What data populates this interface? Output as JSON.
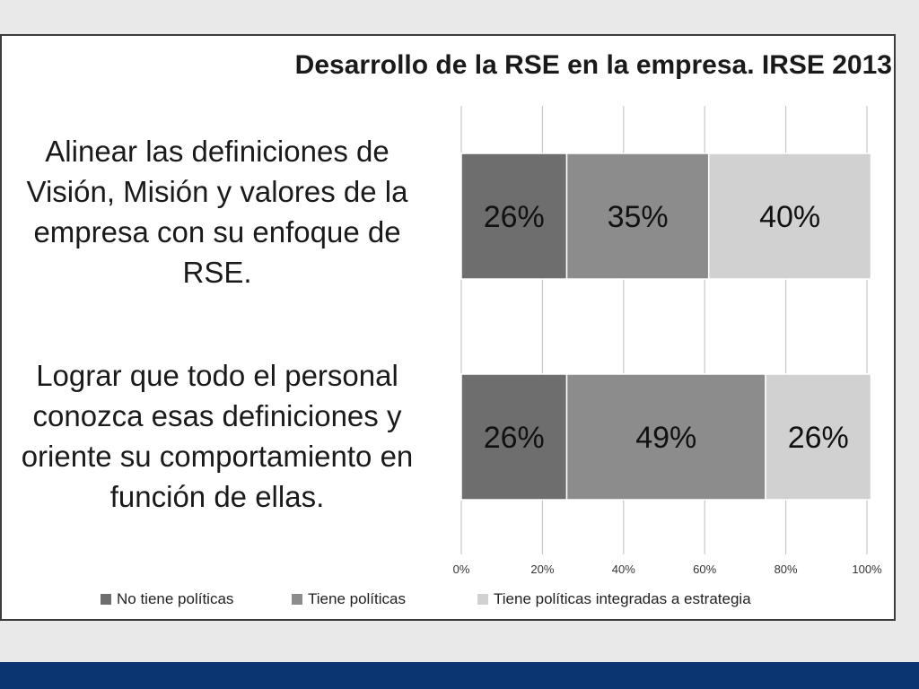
{
  "slide": {
    "title": "Desarrollo de la RSE en la empresa. IRSE 2013",
    "text_1": "Alinear las definiciones de Visión, Misión y valores de la empresa con su enfoque de RSE.",
    "text_2": "Lograr que todo el personal conozca esas definiciones y oriente su comportamiento en función de ellas."
  },
  "chart_data": {
    "type": "bar",
    "orientation": "horizontal",
    "stacked": "percent",
    "title": "Desarrollo de la RSE en la empresa. IRSE 2013",
    "xlabel": "",
    "ylabel": "",
    "categories": [
      "",
      ""
    ],
    "series": [
      {
        "name": "No tiene políticas",
        "values": [
          26,
          26
        ],
        "labels": [
          "26%",
          "26%"
        ],
        "color": "#6e6e6e"
      },
      {
        "name": "Tiene políticas",
        "values": [
          35,
          49
        ],
        "labels": [
          "35%",
          "49%"
        ],
        "color": "#8c8c8c"
      },
      {
        "name": "Tiene políticas integradas a estrategia",
        "values": [
          40,
          26
        ],
        "labels": [
          "40%",
          "26%"
        ],
        "color": "#d1d1d1"
      }
    ],
    "xlim": [
      0,
      100
    ],
    "xticks": [
      "0%",
      "20%",
      "40%",
      "60%",
      "80%",
      "100%"
    ],
    "grid": true,
    "legend": "bottom"
  }
}
